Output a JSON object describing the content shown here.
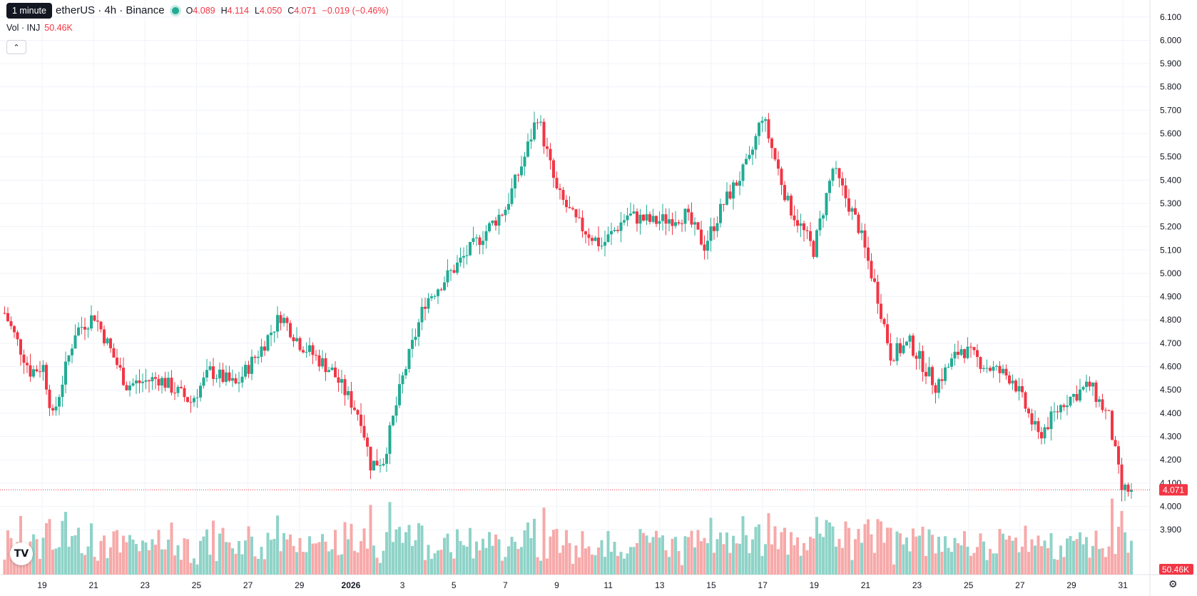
{
  "header": {
    "symbol_text": "etherUS · 4h · Binance",
    "tooltip": "1 minute",
    "open_label": "O",
    "open": "4.089",
    "high_label": "H",
    "high": "4.114",
    "low_label": "L",
    "low": "4.050",
    "close_label": "C",
    "close": "4.071",
    "change": "−0.019 (−0.46%)"
  },
  "volume_legend": {
    "label": "Vol · INJ",
    "value": "50.46K"
  },
  "colors": {
    "up": "#22ab94",
    "down": "#f23645",
    "up_vol": "#8fd3c8",
    "down_vol": "#f7a9a9"
  },
  "icons": {
    "collapse": "chevron-up-icon",
    "logo": "tradingview-logo-icon",
    "settings": "gear-icon"
  },
  "chart_data": {
    "type": "candlestick",
    "y_axis": {
      "min": 3.79,
      "max": 6.13,
      "ticks": [
        "6.100",
        "6.000",
        "5.900",
        "5.800",
        "5.700",
        "5.600",
        "5.500",
        "5.400",
        "5.300",
        "5.200",
        "5.100",
        "5.000",
        "4.900",
        "4.800",
        "4.700",
        "4.600",
        "4.500",
        "4.400",
        "4.300",
        "4.200",
        "4.100",
        "4.000",
        "3.900"
      ]
    },
    "x_axis": {
      "labels": [
        "19",
        "21",
        "23",
        "25",
        "27",
        "29",
        "2026",
        "3",
        "5",
        "7",
        "9",
        "11",
        "13",
        "15",
        "17",
        "19",
        "21",
        "23",
        "25",
        "27",
        "29",
        "31"
      ],
      "bold": "2026"
    },
    "last_price": "4.071",
    "last_volume": "50.46K",
    "grid": true,
    "anchors": [
      [
        0,
        4.83
      ],
      [
        8,
        4.58
      ],
      [
        12,
        4.6
      ],
      [
        15,
        4.38
      ],
      [
        22,
        4.75
      ],
      [
        28,
        4.82
      ],
      [
        38,
        4.52
      ],
      [
        48,
        4.55
      ],
      [
        58,
        4.45
      ],
      [
        64,
        4.58
      ],
      [
        72,
        4.52
      ],
      [
        80,
        4.68
      ],
      [
        86,
        4.82
      ],
      [
        92,
        4.7
      ],
      [
        102,
        4.58
      ],
      [
        111,
        4.38
      ],
      [
        114,
        4.18
      ],
      [
        118,
        4.2
      ],
      [
        124,
        4.55
      ],
      [
        131,
        4.88
      ],
      [
        140,
        5.02
      ],
      [
        148,
        5.15
      ],
      [
        156,
        5.28
      ],
      [
        162,
        5.5
      ],
      [
        166,
        5.68
      ],
      [
        172,
        5.35
      ],
      [
        178,
        5.22
      ],
      [
        186,
        5.12
      ],
      [
        194,
        5.25
      ],
      [
        202,
        5.22
      ],
      [
        212,
        5.25
      ],
      [
        218,
        5.12
      ],
      [
        224,
        5.3
      ],
      [
        232,
        5.48
      ],
      [
        236,
        5.68
      ],
      [
        244,
        5.3
      ],
      [
        252,
        5.1
      ],
      [
        258,
        5.45
      ],
      [
        266,
        5.2
      ],
      [
        272,
        4.9
      ],
      [
        276,
        4.65
      ],
      [
        282,
        4.7
      ],
      [
        290,
        4.52
      ],
      [
        298,
        4.68
      ],
      [
        306,
        4.6
      ],
      [
        314,
        4.55
      ],
      [
        322,
        4.3
      ],
      [
        330,
        4.45
      ],
      [
        338,
        4.52
      ],
      [
        344,
        4.38
      ],
      [
        348,
        4.07
      ],
      [
        351,
        4.07
      ]
    ],
    "volume_max_k": 260
  }
}
